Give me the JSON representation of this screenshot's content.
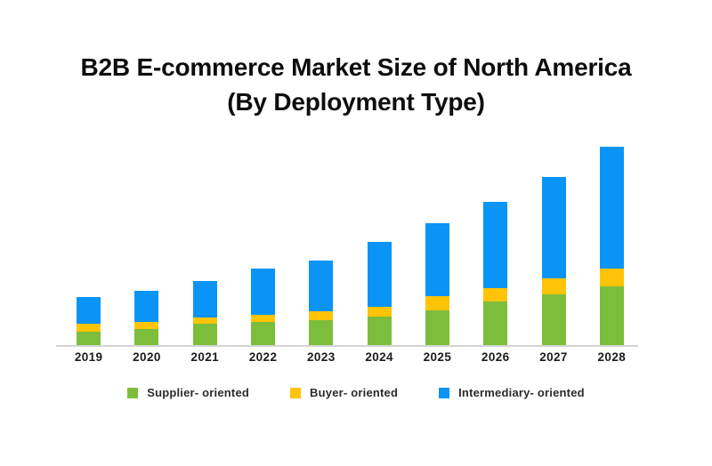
{
  "title": {
    "line1": "B2B E-commerce Market Size of North America",
    "line2": "(By Deployment Type)"
  },
  "chart_data": {
    "type": "bar",
    "stacked": true,
    "title": "B2B E-commerce Market Size of North America (By Deployment Type)",
    "xlabel": "",
    "ylabel": "",
    "y_axis_visible": false,
    "units": "relative (no value axis shown in image; values estimated from bar pixel heights)",
    "grid": false,
    "legend_position": "bottom",
    "axis_line_color": "#d4d4d4",
    "categories": [
      "2019",
      "2020",
      "2021",
      "2022",
      "2023",
      "2024",
      "2025",
      "2026",
      "2027",
      "2028"
    ],
    "series": [
      {
        "name": "Supplier- oriented",
        "color": "#7cbd3b",
        "values": [
          16,
          19,
          25,
          27,
          29,
          33,
          40,
          50,
          58,
          67
        ]
      },
      {
        "name": "Buyer- oriented",
        "color": "#ffc407",
        "values": [
          9,
          8,
          7,
          8,
          10,
          11,
          16,
          15,
          18,
          20
        ]
      },
      {
        "name": "Intermediary- oriented",
        "color": "#0a94f6",
        "values": [
          30,
          35,
          41,
          52,
          57,
          73,
          82,
          97,
          114,
          137
        ]
      }
    ],
    "totals": [
      55,
      62,
      73,
      87,
      96,
      117,
      138,
      162,
      190,
      224
    ],
    "pixels_per_unit": 1
  }
}
